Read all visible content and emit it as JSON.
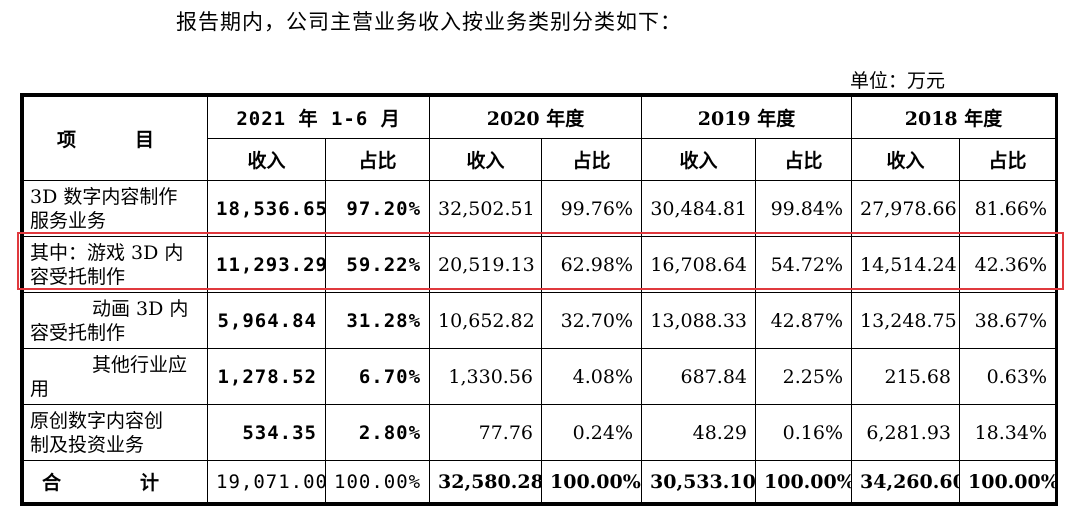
{
  "intro_text": "报告期内，公司主营业务收入按业务类别分类如下：",
  "unit_text": "单位：万元",
  "header": {
    "item": "项　目",
    "periods": [
      "2021 年 1-6 月",
      "2020 年度",
      "2019 年度",
      "2018 年度"
    ],
    "sub": [
      "收入",
      "占比"
    ]
  },
  "rows": [
    {
      "label": [
        "3D 数字内容制作",
        "服务业务"
      ],
      "h1": [
        "18,536.65",
        "97.20%"
      ],
      "y2020": [
        "32,502.51",
        "99.76%"
      ],
      "y2019": [
        "30,484.81",
        "99.84%"
      ],
      "y2018": [
        "27,978.66",
        "81.66%"
      ]
    },
    {
      "label": [
        "其中：游戏 3D 内",
        "容受托制作"
      ],
      "h1": [
        "11,293.29",
        "59.22%"
      ],
      "y2020": [
        "20,519.13",
        "62.98%"
      ],
      "y2019": [
        "16,708.64",
        "54.72%"
      ],
      "y2018": [
        "14,514.24",
        "42.36%"
      ]
    },
    {
      "label": [
        "动画 3D 内",
        "容受托制作"
      ],
      "h1": [
        "5,964.84",
        "31.28%"
      ],
      "y2020": [
        "10,652.82",
        "32.70%"
      ],
      "y2019": [
        "13,088.33",
        "42.87%"
      ],
      "y2018": [
        "13,248.75",
        "38.67%"
      ]
    },
    {
      "label": [
        "其他行业应",
        "用"
      ],
      "h1": [
        "1,278.52",
        "6.70%"
      ],
      "y2020": [
        "1,330.56",
        "4.08%"
      ],
      "y2019": [
        "687.84",
        "2.25%"
      ],
      "y2018": [
        "215.68",
        "0.63%"
      ]
    },
    {
      "label": [
        "原创数字内容创",
        "制及投资业务"
      ],
      "h1": [
        "534.35",
        "2.80%"
      ],
      "y2020": [
        "77.76",
        "0.24%"
      ],
      "y2019": [
        "48.29",
        "0.16%"
      ],
      "y2018": [
        "6,281.93",
        "18.34%"
      ]
    }
  ],
  "total": {
    "label": "合　计",
    "h1": [
      "19,071.00",
      "100.00%"
    ],
    "y2020": [
      "32,580.28",
      "100.00%"
    ],
    "y2019": [
      "30,533.10",
      "100.00%"
    ],
    "y2018": [
      "34,260.60",
      "100.00%"
    ]
  },
  "highlight_color": "#e0393e"
}
